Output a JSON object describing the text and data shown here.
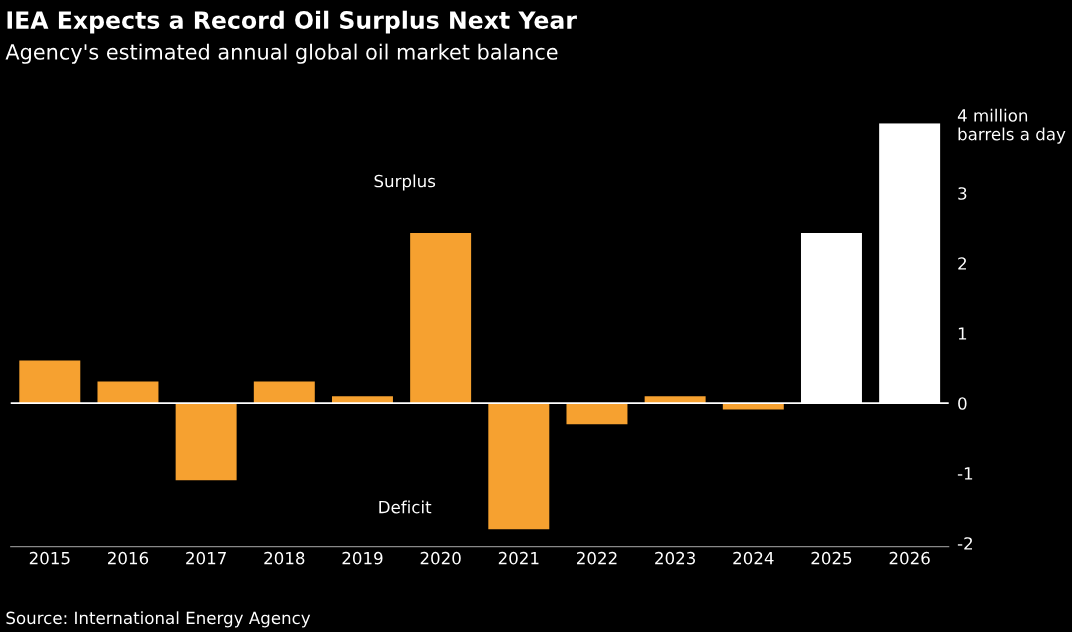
{
  "chart_data": {
    "type": "bar",
    "title": "IEA Expects a Record Oil Surplus Next Year",
    "subtitle": "Agency's estimated annual global oil market balance",
    "categories": [
      "2015",
      "2016",
      "2017",
      "2018",
      "2019",
      "2020",
      "2021",
      "2022",
      "2023",
      "2024",
      "2025",
      "2026"
    ],
    "values": [
      0.61,
      0.31,
      -1.1,
      0.31,
      0.1,
      2.43,
      -1.8,
      -0.3,
      0.1,
      -0.09,
      2.43,
      4.0
    ],
    "colors": [
      "#f6a130",
      "#f6a130",
      "#f6a130",
      "#f6a130",
      "#f6a130",
      "#f6a130",
      "#f6a130",
      "#f6a130",
      "#f6a130",
      "#f6a130",
      "#ffffff",
      "#ffffff"
    ],
    "ylim": [
      -2.05,
      4
    ],
    "yticks": [
      -2,
      -1,
      0,
      1,
      2,
      3,
      {
        "value": 4,
        "label": "4 million barrels a day"
      }
    ],
    "ref_lines": [
      {
        "axis": "y",
        "value": 0,
        "color": "#ffffff"
      }
    ],
    "annotations": [
      "Surplus",
      "Deficit",
      "Source: International Energy Agency"
    ],
    "grid": false
  }
}
